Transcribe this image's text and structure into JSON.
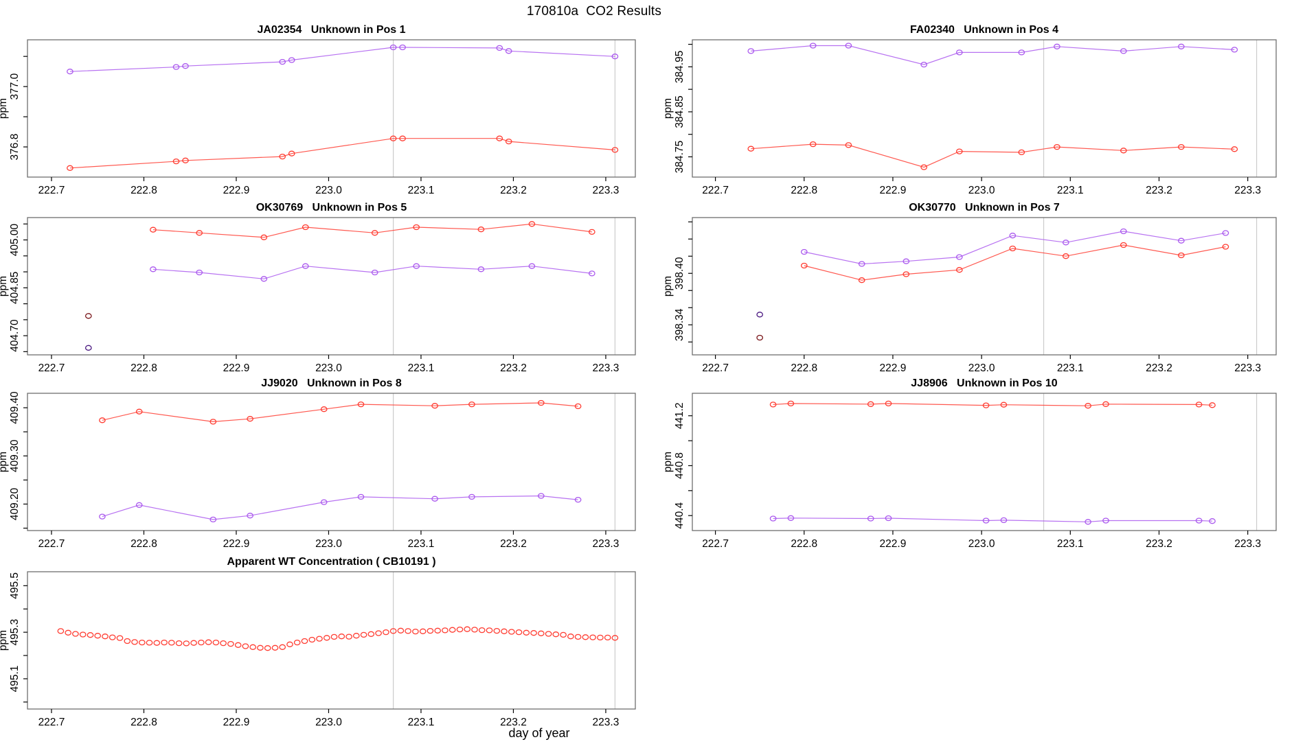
{
  "main_title": "170810a  CO2 Results",
  "xlabel": "day of year",
  "colors": {
    "red": "#ff3b30",
    "purple": "#aa58ee",
    "dark_red": "#7a161a",
    "dark_purple": "#4a1880",
    "ref_line": "#cccccc",
    "frame": "#6e6e6e",
    "text": "#000000"
  },
  "chart_data": [
    {
      "type": "line",
      "title": "JA02354   Unknown in Pos 1",
      "ylabel": "ppm",
      "grid_position": {
        "row": 0,
        "col": 0
      },
      "xlim": [
        222.674,
        223.332
      ],
      "ylim": [
        376.7,
        377.155
      ],
      "xticks": [
        222.7,
        222.8,
        222.9,
        223.0,
        223.1,
        223.2,
        223.3
      ],
      "xtick_labels": [
        "222.7",
        "222.8",
        "222.9",
        "223.0",
        "223.1",
        "223.2",
        "223.3"
      ],
      "yticks": [
        {
          "v": 377.1,
          "label": ""
        },
        {
          "v": 377.0,
          "label": "377.0"
        },
        {
          "v": 376.9,
          "label": ""
        },
        {
          "v": 376.8,
          "label": "376.8"
        }
      ],
      "vlines": [
        223.07,
        223.31
      ],
      "series": [
        {
          "name": "purple-trace",
          "color": "purple",
          "draw_line": true,
          "x": [
            222.72,
            222.835,
            222.845,
            222.95,
            222.96,
            223.07,
            223.08,
            223.185,
            223.195,
            223.31
          ],
          "y": [
            377.05,
            377.065,
            377.068,
            377.082,
            377.088,
            377.13,
            377.13,
            377.128,
            377.118,
            377.1
          ]
        },
        {
          "name": "red-trace",
          "color": "red",
          "draw_line": true,
          "x": [
            222.72,
            222.835,
            222.845,
            222.95,
            222.96,
            223.07,
            223.08,
            223.185,
            223.195,
            223.31
          ],
          "y": [
            376.73,
            376.752,
            376.755,
            376.768,
            376.778,
            376.828,
            376.828,
            376.828,
            376.818,
            376.79
          ]
        }
      ]
    },
    {
      "type": "line",
      "title": "FA02340   Unknown in Pos 4",
      "ylabel": "ppm",
      "grid_position": {
        "row": 0,
        "col": 1
      },
      "xlim": [
        222.674,
        223.332
      ],
      "ylim": [
        384.705,
        385.01
      ],
      "xticks": [
        222.7,
        222.8,
        222.9,
        223.0,
        223.1,
        223.2,
        223.3
      ],
      "xtick_labels": [
        "222.7",
        "222.8",
        "222.9",
        "223.0",
        "223.1",
        "223.2",
        "223.3"
      ],
      "yticks": [
        {
          "v": 385.0,
          "label": ""
        },
        {
          "v": 384.95,
          "label": "384.95"
        },
        {
          "v": 384.9,
          "label": ""
        },
        {
          "v": 384.85,
          "label": "384.85"
        },
        {
          "v": 384.8,
          "label": ""
        },
        {
          "v": 384.75,
          "label": "384.75"
        }
      ],
      "vlines": [
        223.07,
        223.31
      ],
      "series": [
        {
          "name": "purple-trace",
          "color": "purple",
          "draw_line": true,
          "x": [
            222.74,
            222.81,
            222.85,
            222.935,
            222.975,
            223.045,
            223.085,
            223.16,
            223.225,
            223.285
          ],
          "y": [
            384.985,
            384.997,
            384.997,
            384.955,
            384.982,
            384.982,
            384.995,
            384.985,
            384.995,
            384.988
          ]
        },
        {
          "name": "red-trace",
          "color": "red",
          "draw_line": true,
          "x": [
            222.74,
            222.81,
            222.85,
            222.935,
            222.975,
            223.045,
            223.085,
            223.16,
            223.225,
            223.285
          ],
          "y": [
            384.768,
            384.778,
            384.776,
            384.727,
            384.762,
            384.76,
            384.772,
            384.764,
            384.772,
            384.767
          ]
        }
      ]
    },
    {
      "type": "line",
      "title": "OK30769   Unknown in Pos 5",
      "ylabel": "ppm",
      "grid_position": {
        "row": 1,
        "col": 0
      },
      "xlim": [
        222.674,
        223.332
      ],
      "ylim": [
        404.64,
        405.07
      ],
      "xticks": [
        222.7,
        222.8,
        222.9,
        223.0,
        223.1,
        223.2,
        223.3
      ],
      "xtick_labels": [
        "222.7",
        "222.8",
        "222.9",
        "223.0",
        "223.1",
        "223.2",
        "223.3"
      ],
      "yticks": [
        {
          "v": 405.05,
          "label": ""
        },
        {
          "v": 405.0,
          "label": "405.00"
        },
        {
          "v": 404.95,
          "label": ""
        },
        {
          "v": 404.9,
          "label": ""
        },
        {
          "v": 404.85,
          "label": "404.85"
        },
        {
          "v": 404.8,
          "label": ""
        },
        {
          "v": 404.75,
          "label": ""
        },
        {
          "v": 404.7,
          "label": "404.70"
        },
        {
          "v": 404.65,
          "label": ""
        }
      ],
      "vlines": [
        223.07,
        223.31
      ],
      "series": [
        {
          "name": "red-trace",
          "color": "red",
          "draw_line": true,
          "x": [
            222.81,
            222.86,
            222.93,
            222.975,
            223.05,
            223.095,
            223.165,
            223.22,
            223.285
          ],
          "y": [
            405.032,
            405.022,
            405.008,
            405.04,
            405.022,
            405.04,
            405.033,
            405.05,
            405.025
          ]
        },
        {
          "name": "purple-trace",
          "color": "purple",
          "draw_line": true,
          "x": [
            222.81,
            222.86,
            222.93,
            222.975,
            223.05,
            223.095,
            223.165,
            223.22,
            223.285
          ],
          "y": [
            404.908,
            404.898,
            404.878,
            404.918,
            404.898,
            404.918,
            404.908,
            404.918,
            404.895
          ]
        },
        {
          "name": "outlier-dark-red",
          "color": "dark_red",
          "draw_line": false,
          "x": [
            222.74
          ],
          "y": [
            404.762
          ]
        },
        {
          "name": "outlier-dark-purple",
          "color": "dark_purple",
          "draw_line": false,
          "x": [
            222.74
          ],
          "y": [
            404.662
          ]
        }
      ]
    },
    {
      "type": "line",
      "title": "OK30770   Unknown in Pos 7",
      "ylabel": "ppm",
      "grid_position": {
        "row": 1,
        "col": 1
      },
      "xlim": [
        222.674,
        223.332
      ],
      "ylim": [
        398.305,
        398.465
      ],
      "xticks": [
        222.7,
        222.8,
        222.9,
        223.0,
        223.1,
        223.2,
        223.3
      ],
      "xtick_labels": [
        "222.7",
        "222.8",
        "222.9",
        "223.0",
        "223.1",
        "223.2",
        "223.3"
      ],
      "yticks": [
        {
          "v": 398.46,
          "label": ""
        },
        {
          "v": 398.44,
          "label": ""
        },
        {
          "v": 398.42,
          "label": ""
        },
        {
          "v": 398.4,
          "label": "398.40"
        },
        {
          "v": 398.38,
          "label": ""
        },
        {
          "v": 398.36,
          "label": ""
        },
        {
          "v": 398.34,
          "label": "398.34"
        },
        {
          "v": 398.32,
          "label": ""
        }
      ],
      "vlines": [
        223.07,
        223.31
      ],
      "series": [
        {
          "name": "purple-trace",
          "color": "purple",
          "draw_line": true,
          "x": [
            222.8,
            222.865,
            222.915,
            222.975,
            223.035,
            223.095,
            223.16,
            223.225,
            223.275
          ],
          "y": [
            398.425,
            398.411,
            398.414,
            398.419,
            398.444,
            398.436,
            398.449,
            398.438,
            398.447
          ]
        },
        {
          "name": "red-trace",
          "color": "red",
          "draw_line": true,
          "x": [
            222.8,
            222.865,
            222.915,
            222.975,
            223.035,
            223.095,
            223.16,
            223.225,
            223.275
          ],
          "y": [
            398.409,
            398.392,
            398.399,
            398.404,
            398.429,
            398.42,
            398.433,
            398.421,
            398.431
          ]
        },
        {
          "name": "outlier-dark-purple",
          "color": "dark_purple",
          "draw_line": false,
          "x": [
            222.75
          ],
          "y": [
            398.352
          ]
        },
        {
          "name": "outlier-dark-red",
          "color": "dark_red",
          "draw_line": false,
          "x": [
            222.75
          ],
          "y": [
            398.325
          ]
        }
      ]
    },
    {
      "type": "line",
      "title": "JJ9020   Unknown in Pos 8",
      "ylabel": "ppm",
      "grid_position": {
        "row": 2,
        "col": 0
      },
      "xlim": [
        222.674,
        223.332
      ],
      "ylim": [
        409.145,
        409.43
      ],
      "xticks": [
        222.7,
        222.8,
        222.9,
        223.0,
        223.1,
        223.2,
        223.3
      ],
      "xtick_labels": [
        "222.7",
        "222.8",
        "222.9",
        "223.0",
        "223.1",
        "223.2",
        "223.3"
      ],
      "yticks": [
        {
          "v": 409.4,
          "label": "409.40"
        },
        {
          "v": 409.35,
          "label": ""
        },
        {
          "v": 409.3,
          "label": "409.30"
        },
        {
          "v": 409.25,
          "label": ""
        },
        {
          "v": 409.2,
          "label": "409.20"
        },
        {
          "v": 409.15,
          "label": ""
        }
      ],
      "vlines": [
        223.07,
        223.31
      ],
      "series": [
        {
          "name": "red-trace",
          "color": "red",
          "draw_line": true,
          "x": [
            222.755,
            222.795,
            222.875,
            222.915,
            222.995,
            223.035,
            223.115,
            223.155,
            223.23,
            223.27
          ],
          "y": [
            409.374,
            409.392,
            409.371,
            409.377,
            409.397,
            409.407,
            409.404,
            409.407,
            409.41,
            409.403
          ]
        },
        {
          "name": "purple-trace",
          "color": "purple",
          "draw_line": true,
          "x": [
            222.755,
            222.795,
            222.875,
            222.915,
            222.995,
            223.035,
            223.115,
            223.155,
            223.23,
            223.27
          ],
          "y": [
            409.174,
            409.198,
            409.168,
            409.176,
            409.204,
            409.215,
            409.211,
            409.215,
            409.217,
            409.209
          ]
        }
      ]
    },
    {
      "type": "line",
      "title": "JJ8906   Unknown in Pos 10",
      "ylabel": "ppm",
      "grid_position": {
        "row": 2,
        "col": 1
      },
      "xlim": [
        222.674,
        223.332
      ],
      "ylim": [
        440.28,
        441.38
      ],
      "xticks": [
        222.7,
        222.8,
        222.9,
        223.0,
        223.1,
        223.2,
        223.3
      ],
      "xtick_labels": [
        "222.7",
        "222.8",
        "222.9",
        "223.0",
        "223.1",
        "223.2",
        "223.3"
      ],
      "yticks": [
        {
          "v": 441.2,
          "label": "441.2"
        },
        {
          "v": 441.0,
          "label": ""
        },
        {
          "v": 440.8,
          "label": "440.8"
        },
        {
          "v": 440.6,
          "label": ""
        },
        {
          "v": 440.4,
          "label": "440.4"
        }
      ],
      "vlines": [
        223.07,
        223.31
      ],
      "series": [
        {
          "name": "red-trace",
          "color": "red",
          "draw_line": true,
          "x": [
            222.765,
            222.785,
            222.875,
            222.895,
            223.005,
            223.025,
            223.12,
            223.14,
            223.245,
            223.26
          ],
          "y": [
            441.29,
            441.298,
            441.293,
            441.298,
            441.283,
            441.288,
            441.28,
            441.293,
            441.29,
            441.285
          ]
        },
        {
          "name": "purple-trace",
          "color": "purple",
          "draw_line": true,
          "x": [
            222.765,
            222.785,
            222.875,
            222.895,
            223.005,
            223.025,
            223.12,
            223.14,
            223.245,
            223.26
          ],
          "y": [
            440.376,
            440.38,
            440.376,
            440.379,
            440.36,
            440.363,
            440.35,
            440.36,
            440.36,
            440.356
          ]
        }
      ]
    },
    {
      "type": "scatter",
      "title": "Apparent WT Concentration ( CB10191 )",
      "ylabel": "ppm",
      "grid_position": {
        "row": 3,
        "col": 0
      },
      "xlim": [
        222.674,
        223.332
      ],
      "ylim": [
        494.97,
        495.56
      ],
      "xticks": [
        222.7,
        222.8,
        222.9,
        223.0,
        223.1,
        223.2,
        223.3
      ],
      "xtick_labels": [
        "222.7",
        "222.8",
        "222.9",
        "223.0",
        "223.1",
        "223.2",
        "223.3"
      ],
      "yticks": [
        {
          "v": 495.5,
          "label": "495.5"
        },
        {
          "v": 495.4,
          "label": ""
        },
        {
          "v": 495.3,
          "label": "495.3"
        },
        {
          "v": 495.2,
          "label": ""
        },
        {
          "v": 495.1,
          "label": "495.1"
        },
        {
          "v": 495.0,
          "label": ""
        }
      ],
      "vlines": [
        223.07,
        223.31
      ],
      "series": [
        {
          "name": "red-points",
          "color": "red",
          "draw_line": false,
          "x": [
            222.71,
            222.718,
            222.726,
            222.734,
            222.742,
            222.75,
            222.758,
            222.766,
            222.774,
            222.782,
            222.79,
            222.798,
            222.806,
            222.814,
            222.822,
            222.83,
            222.838,
            222.846,
            222.854,
            222.862,
            222.87,
            222.878,
            222.886,
            222.894,
            222.902,
            222.91,
            222.918,
            222.926,
            222.934,
            222.942,
            222.95,
            222.958,
            222.966,
            222.974,
            222.982,
            222.99,
            222.998,
            223.006,
            223.014,
            223.022,
            223.03,
            223.038,
            223.046,
            223.054,
            223.062,
            223.07,
            223.078,
            223.086,
            223.094,
            223.102,
            223.11,
            223.118,
            223.126,
            223.134,
            223.142,
            223.15,
            223.158,
            223.166,
            223.174,
            223.182,
            223.19,
            223.198,
            223.206,
            223.214,
            223.222,
            223.23,
            223.238,
            223.246,
            223.254,
            223.262,
            223.27,
            223.278,
            223.286,
            223.294,
            223.302,
            223.31
          ],
          "y": [
            495.305,
            495.298,
            495.293,
            495.29,
            495.288,
            495.285,
            495.282,
            495.278,
            495.275,
            495.262,
            495.258,
            495.256,
            495.255,
            495.254,
            495.256,
            495.255,
            495.253,
            495.252,
            495.254,
            495.256,
            495.257,
            495.256,
            495.253,
            495.25,
            495.245,
            495.24,
            495.236,
            495.233,
            495.232,
            495.233,
            495.236,
            495.248,
            495.256,
            495.262,
            495.268,
            495.272,
            495.276,
            495.28,
            495.282,
            495.281,
            495.285,
            495.289,
            495.292,
            495.296,
            495.3,
            495.305,
            495.307,
            495.305,
            495.303,
            495.304,
            495.306,
            495.307,
            495.308,
            495.31,
            495.312,
            495.313,
            495.311,
            495.309,
            495.308,
            495.306,
            495.304,
            495.302,
            495.3,
            495.298,
            495.297,
            495.295,
            495.293,
            495.291,
            495.289,
            495.282,
            495.28,
            495.279,
            495.278,
            495.277,
            495.277,
            495.276
          ]
        }
      ]
    }
  ]
}
